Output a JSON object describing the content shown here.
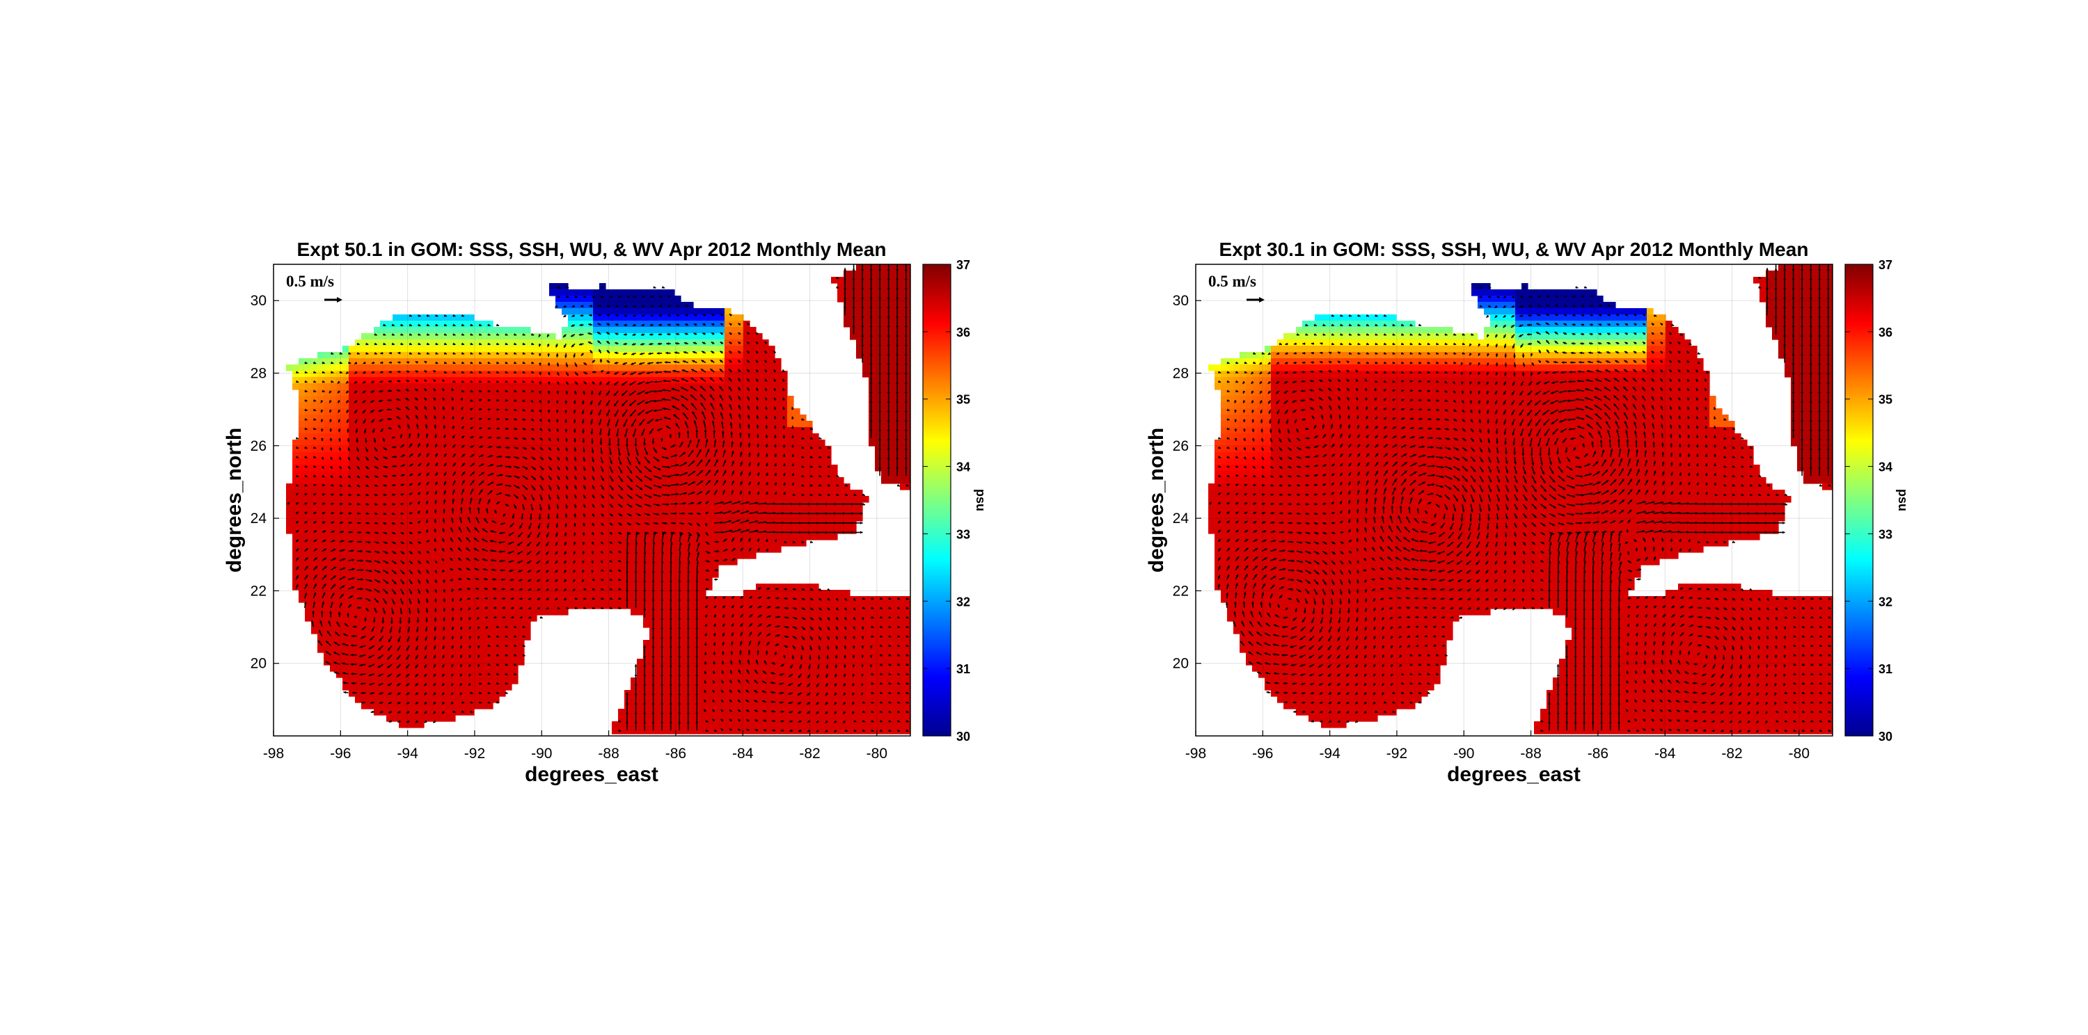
{
  "figure": {
    "panels": [
      {
        "title": "Expt 50.1 in GOM: SSS, SSH, WU, & WV Apr 2012 Monthly Mean",
        "xlabel": "degrees_east",
        "ylabel": "degrees_north",
        "vector_scale_label": "0.5 m/s",
        "colorbar_label": "psu",
        "variant": 0
      },
      {
        "title": "Expt 30.1 in GOM: SSS, SSH, WU, & WV Apr 2012 Monthly Mean",
        "xlabel": "degrees_east",
        "ylabel": "degrees_north",
        "vector_scale_label": "0.5 m/s",
        "colorbar_label": "psu",
        "variant": 1
      }
    ],
    "x_ticks": [
      "-98",
      "-96",
      "-94",
      "-92",
      "-90",
      "-88",
      "-86",
      "-84",
      "-82",
      "-80"
    ],
    "y_ticks": [
      "20",
      "22",
      "24",
      "26",
      "28",
      "30"
    ],
    "xlim": [
      -98,
      -79
    ],
    "ylim": [
      18,
      31
    ],
    "colorbar_ticks": [
      "30",
      "31",
      "32",
      "33",
      "34",
      "35",
      "36",
      "37"
    ],
    "colorbar_range": [
      30,
      37
    ],
    "colormap": [
      "#00008f",
      "#0000ff",
      "#0080ff",
      "#00ffff",
      "#80ff80",
      "#ffff00",
      "#ff8000",
      "#ff0000",
      "#800000"
    ],
    "gridlines": true,
    "land_color": "#ffffff",
    "arrow_color": "#000000",
    "description": ""
  }
}
